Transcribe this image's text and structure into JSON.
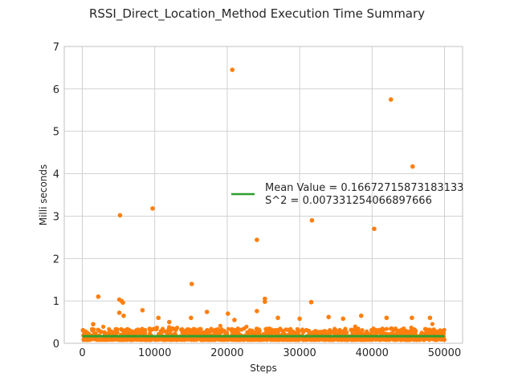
{
  "chart_data": {
    "type": "scatter",
    "title": "RSSI_Direct_Location_Method Execution Time Summary",
    "xlabel": "Steps",
    "ylabel": "Milli seconds",
    "xlim": [
      -2500,
      52500
    ],
    "ylim": [
      0,
      7
    ],
    "xticks": [
      0,
      10000,
      20000,
      30000,
      40000,
      50000
    ],
    "yticks": [
      0,
      1,
      2,
      3,
      4,
      5,
      6,
      7
    ],
    "grid": true,
    "legend_position": "center-right",
    "colors": {
      "points": "#ff7f0e",
      "mean_line": "#2ca02c"
    },
    "series": [
      {
        "kind": "scatter",
        "outliers": [
          [
            20700,
            6.45
          ],
          [
            42600,
            5.75
          ],
          [
            45600,
            4.17
          ],
          [
            5200,
            3.02
          ],
          [
            9700,
            3.18
          ],
          [
            31700,
            2.9
          ],
          [
            24100,
            2.44
          ],
          [
            40300,
            2.7
          ],
          [
            15100,
            1.4
          ],
          [
            2200,
            1.1
          ],
          [
            5100,
            1.03
          ],
          [
            5400,
            1.0
          ],
          [
            5600,
            0.96
          ],
          [
            25200,
            1.05
          ],
          [
            25200,
            0.98
          ],
          [
            31600,
            0.97
          ],
          [
            8300,
            0.78
          ],
          [
            17200,
            0.74
          ],
          [
            24100,
            0.76
          ],
          [
            20100,
            0.7
          ],
          [
            5100,
            0.72
          ],
          [
            5700,
            0.65
          ],
          [
            42000,
            0.6
          ],
          [
            48000,
            0.6
          ],
          [
            38500,
            0.65
          ],
          [
            34000,
            0.62
          ],
          [
            27000,
            0.6
          ],
          [
            15000,
            0.6
          ],
          [
            10500,
            0.6
          ],
          [
            36000,
            0.58
          ],
          [
            45500,
            0.6
          ],
          [
            30000,
            0.58
          ],
          [
            21000,
            0.55
          ],
          [
            1500,
            0.45
          ],
          [
            12000,
            0.5
          ]
        ],
        "bulk": {
          "x_range": [
            0,
            50000
          ],
          "typical_range": [
            0.08,
            0.35
          ]
        }
      },
      {
        "kind": "line",
        "name": "Mean Value = 0.16672715873183133\nS^2 = 0.007331254066897666",
        "value": 0.16672715873183133,
        "x_range": [
          0,
          50000
        ]
      }
    ],
    "legend": {
      "line1": "Mean Value = 0.16672715873183133",
      "line2": "S^2 = 0.007331254066897666"
    }
  }
}
